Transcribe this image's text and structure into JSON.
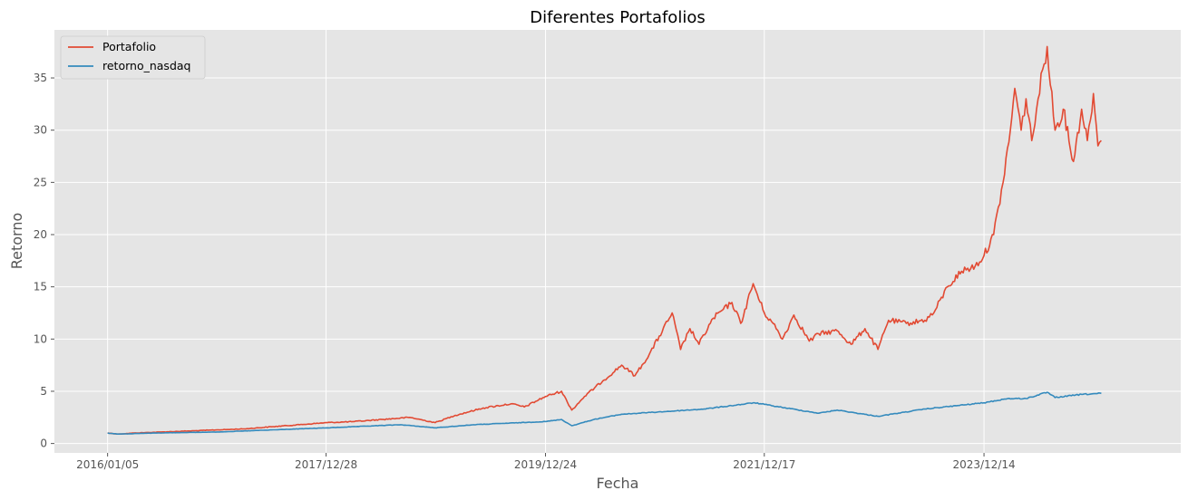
{
  "chart_data": {
    "type": "line",
    "title": "Diferentes Portafolios",
    "xlabel": "Fecha",
    "ylabel": "Retorno",
    "x_tick_labels": [
      "2016/01/05",
      "2017/12/28",
      "2019/12/24",
      "2021/12/17",
      "2023/12/14"
    ],
    "x_tick_dates": [
      "2016-01-05",
      "2017-12-28",
      "2019-12-24",
      "2021-12-17",
      "2023-12-14"
    ],
    "xlim": [
      "2015-07-13",
      "2025-09-25"
    ],
    "y_ticks": [
      0,
      5,
      10,
      15,
      20,
      25,
      30,
      35
    ],
    "ylim": [
      -0.9,
      39.6
    ],
    "grid": true,
    "legend": "top-left",
    "background_color": "#e5e5e5",
    "grid_color": "#ffffff",
    "series": [
      {
        "name": "Portafolio",
        "color": "#e24a33",
        "points": [
          [
            "2016-01-05",
            1.0
          ],
          [
            "2016-02-10",
            0.9
          ],
          [
            "2016-04-01",
            1.0
          ],
          [
            "2016-07-01",
            1.1
          ],
          [
            "2016-10-01",
            1.2
          ],
          [
            "2017-01-01",
            1.3
          ],
          [
            "2017-04-01",
            1.4
          ],
          [
            "2017-07-01",
            1.6
          ],
          [
            "2017-10-01",
            1.8
          ],
          [
            "2018-01-01",
            2.0
          ],
          [
            "2018-04-01",
            2.1
          ],
          [
            "2018-07-01",
            2.3
          ],
          [
            "2018-10-01",
            2.5
          ],
          [
            "2018-12-24",
            2.0
          ],
          [
            "2019-03-01",
            2.7
          ],
          [
            "2019-06-01",
            3.4
          ],
          [
            "2019-09-01",
            3.8
          ],
          [
            "2019-10-15",
            3.5
          ],
          [
            "2019-12-24",
            4.5
          ],
          [
            "2020-02-15",
            5.0
          ],
          [
            "2020-03-20",
            3.2
          ],
          [
            "2020-05-01",
            4.5
          ],
          [
            "2020-07-01",
            6.0
          ],
          [
            "2020-09-01",
            7.5
          ],
          [
            "2020-10-15",
            6.5
          ],
          [
            "2020-12-01",
            8.5
          ],
          [
            "2021-02-15",
            12.5
          ],
          [
            "2021-03-15",
            9.0
          ],
          [
            "2021-04-15",
            11.0
          ],
          [
            "2021-05-15",
            9.5
          ],
          [
            "2021-07-01",
            12.0
          ],
          [
            "2021-09-01",
            13.5
          ],
          [
            "2021-09-30",
            11.5
          ],
          [
            "2021-11-10",
            15.3
          ],
          [
            "2021-12-17",
            12.5
          ],
          [
            "2022-01-15",
            11.5
          ],
          [
            "2022-02-15",
            10.0
          ],
          [
            "2022-03-25",
            12.3
          ],
          [
            "2022-05-15",
            9.8
          ],
          [
            "2022-06-15",
            10.5
          ],
          [
            "2022-08-15",
            10.8
          ],
          [
            "2022-09-30",
            9.5
          ],
          [
            "2022-11-15",
            11.0
          ],
          [
            "2022-12-28",
            9.0
          ],
          [
            "2023-02-01",
            11.8
          ],
          [
            "2023-04-01",
            11.5
          ],
          [
            "2023-06-01",
            11.8
          ],
          [
            "2023-07-01",
            12.5
          ],
          [
            "2023-08-15",
            15.0
          ],
          [
            "2023-10-01",
            16.5
          ],
          [
            "2023-11-15",
            17.0
          ],
          [
            "2023-12-14",
            18.0
          ],
          [
            "2024-01-15",
            20.0
          ],
          [
            "2024-02-15",
            25.0
          ],
          [
            "2024-03-10",
            30.0
          ],
          [
            "2024-03-25",
            34.0
          ],
          [
            "2024-04-15",
            30.0
          ],
          [
            "2024-05-01",
            33.0
          ],
          [
            "2024-05-20",
            29.0
          ],
          [
            "2024-06-10",
            33.0
          ],
          [
            "2024-07-10",
            38.0
          ],
          [
            "2024-08-05",
            30.0
          ],
          [
            "2024-09-01",
            32.0
          ],
          [
            "2024-10-05",
            27.0
          ],
          [
            "2024-11-01",
            32.0
          ],
          [
            "2024-11-20",
            29.0
          ],
          [
            "2024-12-10",
            33.5
          ],
          [
            "2024-12-25",
            28.5
          ],
          [
            "2025-01-05",
            29.0
          ]
        ]
      },
      {
        "name": "retorno_nasdaq",
        "color": "#348abd",
        "points": [
          [
            "2016-01-05",
            1.0
          ],
          [
            "2016-02-10",
            0.9
          ],
          [
            "2016-06-01",
            1.0
          ],
          [
            "2017-01-01",
            1.1
          ],
          [
            "2017-07-01",
            1.3
          ],
          [
            "2018-01-01",
            1.5
          ],
          [
            "2018-09-01",
            1.8
          ],
          [
            "2018-12-24",
            1.5
          ],
          [
            "2019-05-01",
            1.8
          ],
          [
            "2019-12-24",
            2.1
          ],
          [
            "2020-02-15",
            2.3
          ],
          [
            "2020-03-20",
            1.7
          ],
          [
            "2020-06-01",
            2.3
          ],
          [
            "2020-09-01",
            2.8
          ],
          [
            "2021-02-15",
            3.1
          ],
          [
            "2021-06-01",
            3.3
          ],
          [
            "2021-11-15",
            3.9
          ],
          [
            "2022-01-15",
            3.6
          ],
          [
            "2022-06-15",
            2.9
          ],
          [
            "2022-08-15",
            3.2
          ],
          [
            "2022-12-28",
            2.6
          ],
          [
            "2023-06-01",
            3.3
          ],
          [
            "2023-12-14",
            3.9
          ],
          [
            "2024-03-01",
            4.3
          ],
          [
            "2024-05-01",
            4.3
          ],
          [
            "2024-07-10",
            4.9
          ],
          [
            "2024-08-05",
            4.4
          ],
          [
            "2024-11-01",
            4.7
          ],
          [
            "2025-01-05",
            4.8
          ]
        ]
      }
    ]
  }
}
